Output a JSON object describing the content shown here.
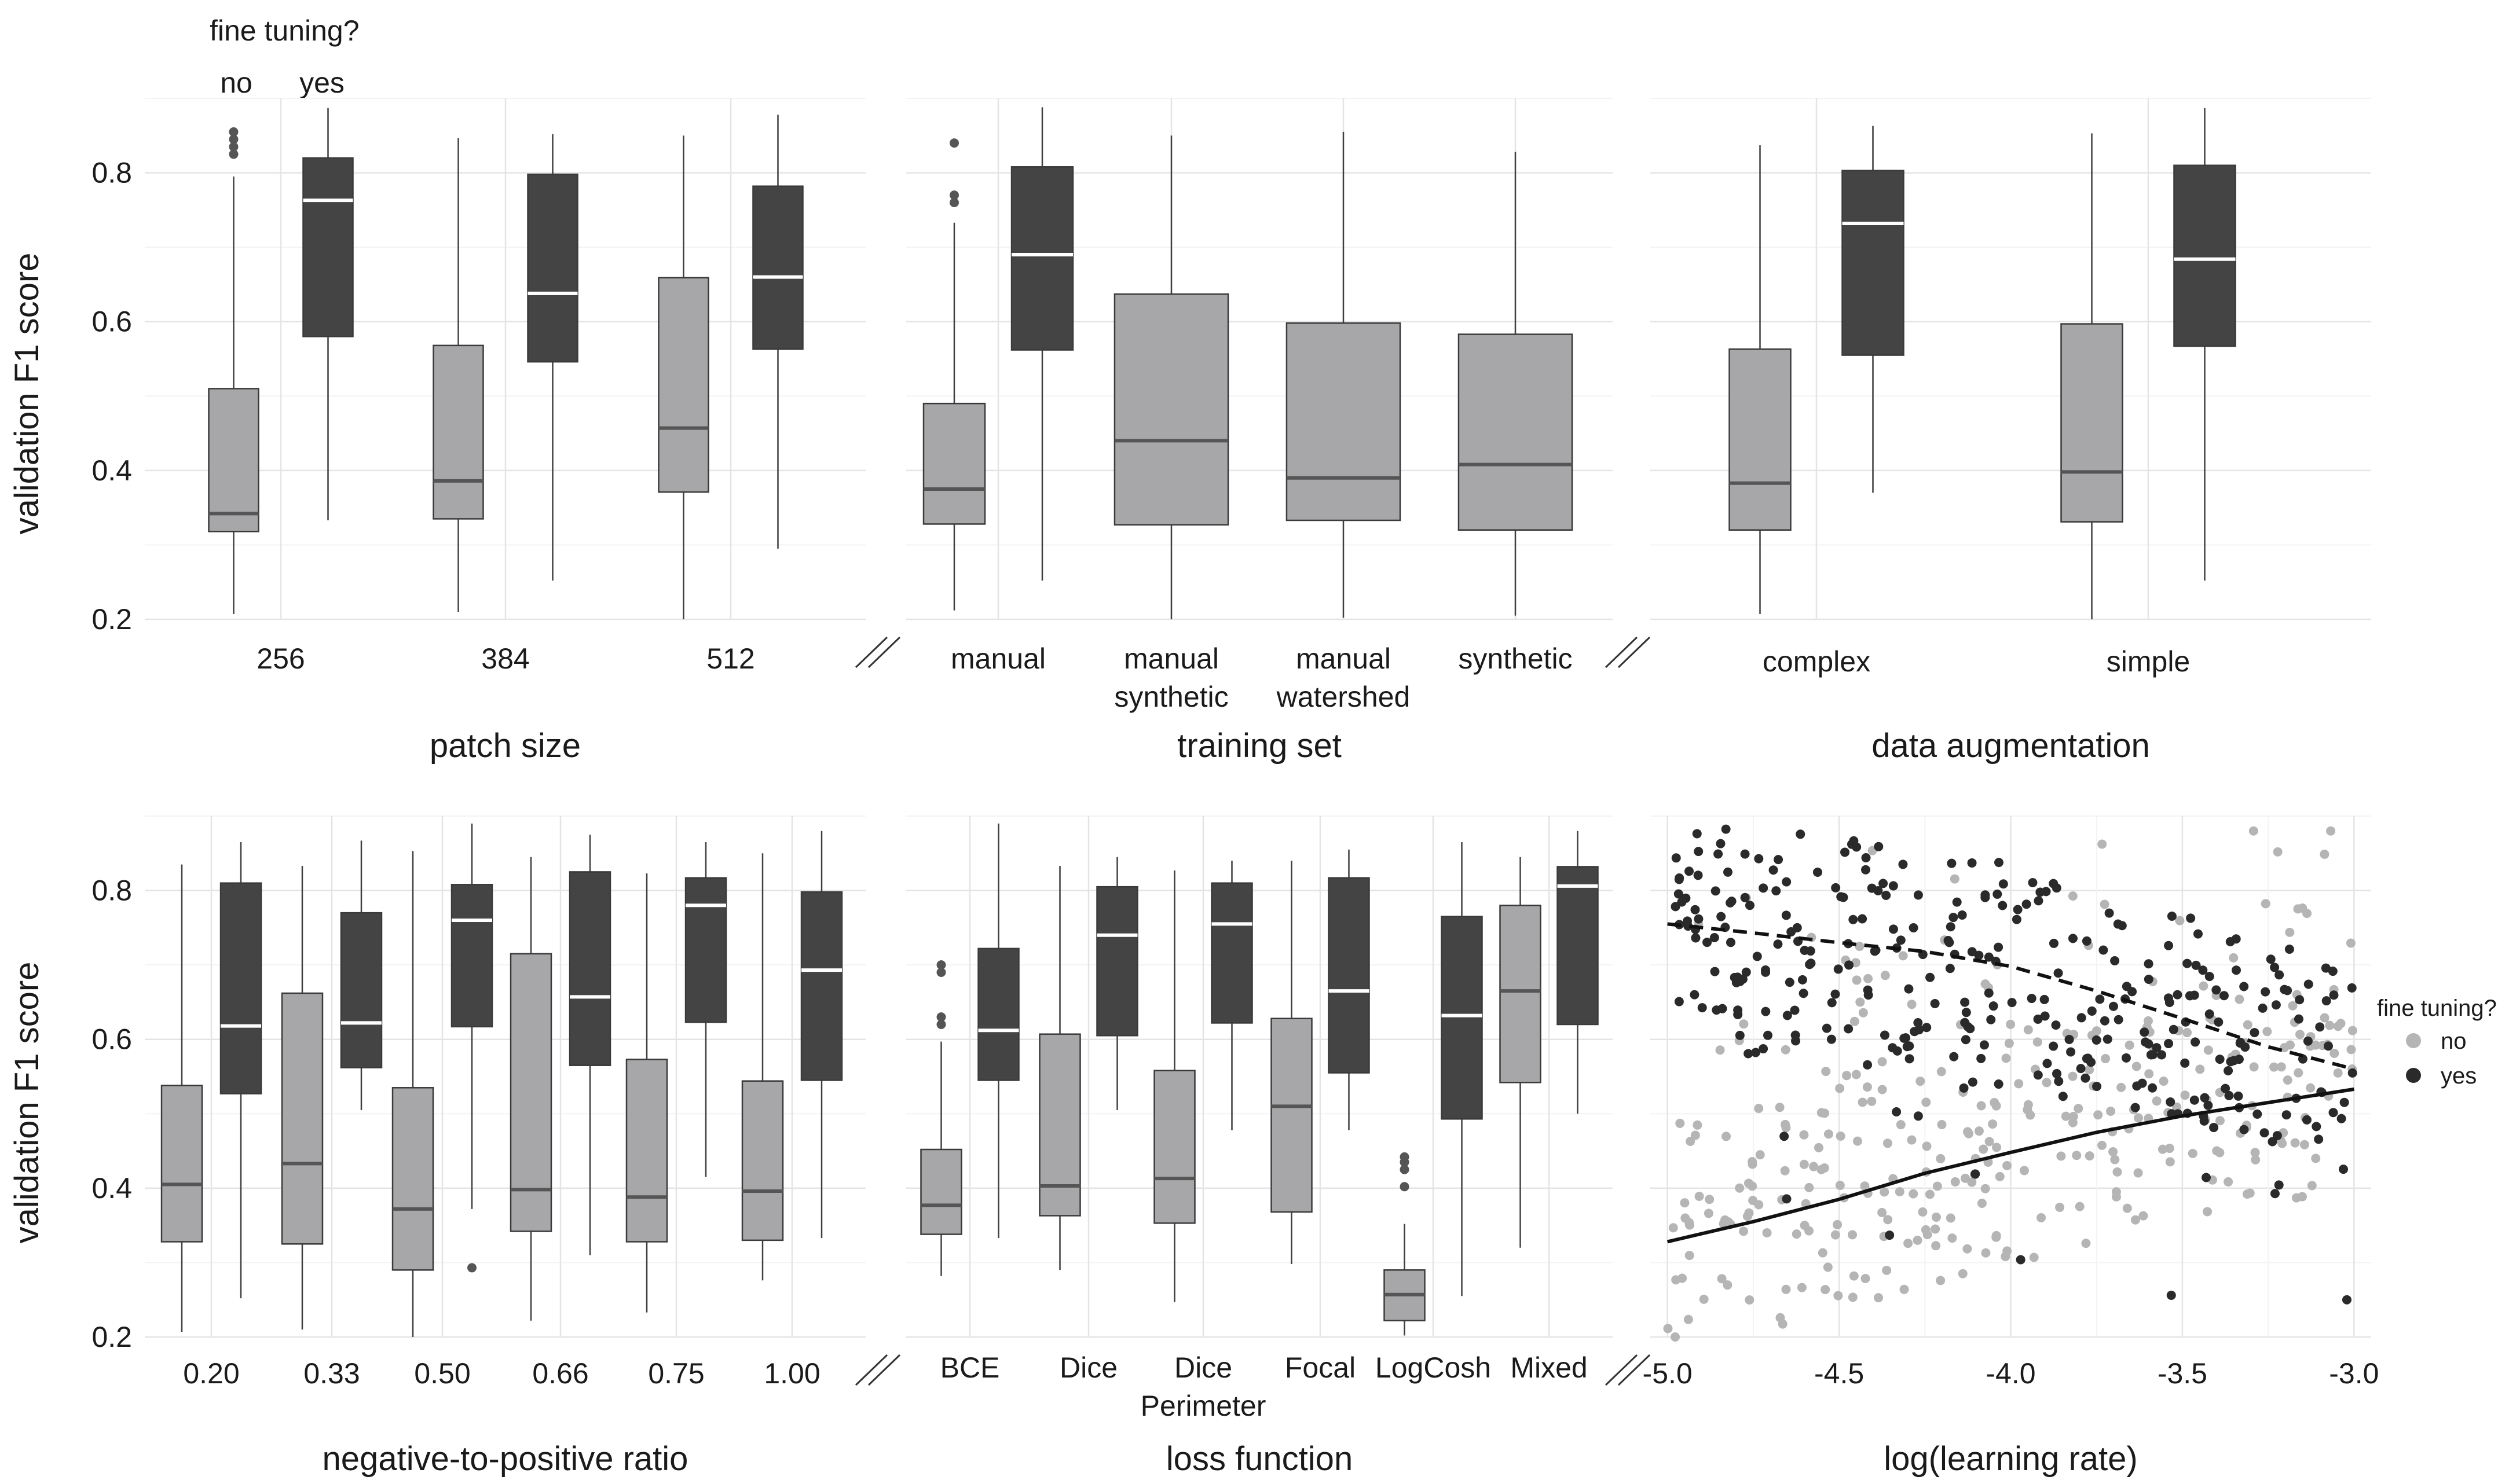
{
  "chart_data": {
    "type": "boxplot",
    "y_label": "validation F1 score",
    "y_ticks": [
      "0.2",
      "0.4",
      "0.6",
      "0.8"
    ],
    "ylim": [
      0.2,
      0.9
    ],
    "fine_tuning_title": "fine tuning?",
    "fine_tuning_levels": [
      "no",
      "yes"
    ],
    "colors": {
      "no": "#a7a7aa",
      "yes": "#444444",
      "median_no": "#555555",
      "median_yes": "#ffffff",
      "point_no": "#b5b5b5",
      "point_yes": "#2a2a2a"
    },
    "panels": [
      {
        "id": "patch-size",
        "xlabel": "patch size",
        "categories": [
          [
            "256"
          ],
          [
            "384"
          ],
          [
            "512"
          ]
        ],
        "boxes": [
          {
            "group": "no",
            "cat": 0,
            "q1": 0.318,
            "median": 0.342,
            "q3": 0.51,
            "lo": 0.207,
            "hi": 0.795,
            "outliers": [
              0.825,
              0.835,
              0.845,
              0.855
            ]
          },
          {
            "group": "yes",
            "cat": 0,
            "q1": 0.58,
            "median": 0.763,
            "q3": 0.82,
            "lo": 0.333,
            "hi": 0.887,
            "outliers": []
          },
          {
            "group": "no",
            "cat": 1,
            "q1": 0.335,
            "median": 0.386,
            "q3": 0.568,
            "lo": 0.21,
            "hi": 0.847,
            "outliers": []
          },
          {
            "group": "yes",
            "cat": 1,
            "q1": 0.546,
            "median": 0.638,
            "q3": 0.798,
            "lo": 0.252,
            "hi": 0.852,
            "outliers": []
          },
          {
            "group": "no",
            "cat": 2,
            "q1": 0.371,
            "median": 0.457,
            "q3": 0.659,
            "lo": 0.2,
            "hi": 0.85,
            "outliers": []
          },
          {
            "group": "yes",
            "cat": 2,
            "q1": 0.563,
            "median": 0.66,
            "q3": 0.782,
            "lo": 0.295,
            "hi": 0.878,
            "outliers": []
          }
        ]
      },
      {
        "id": "training-set",
        "xlabel": "training set",
        "categories": [
          [
            "manual"
          ],
          [
            "manual",
            "synthetic"
          ],
          [
            "manual",
            "watershed"
          ],
          [
            "synthetic"
          ]
        ],
        "boxes": [
          {
            "group": "no",
            "cat": 0,
            "q1": 0.328,
            "median": 0.375,
            "q3": 0.49,
            "lo": 0.212,
            "hi": 0.733,
            "outliers": [
              0.76,
              0.77,
              0.84
            ]
          },
          {
            "group": "yes",
            "cat": 0,
            "q1": 0.562,
            "median": 0.69,
            "q3": 0.808,
            "lo": 0.252,
            "hi": 0.888,
            "outliers": []
          },
          {
            "group": "no",
            "cat": 1,
            "q1": 0.327,
            "median": 0.44,
            "q3": 0.637,
            "lo": 0.2,
            "hi": 0.85,
            "outliers": []
          },
          {
            "group": "no",
            "cat": 2,
            "q1": 0.333,
            "median": 0.39,
            "q3": 0.598,
            "lo": 0.202,
            "hi": 0.855,
            "outliers": []
          },
          {
            "group": "no",
            "cat": 3,
            "q1": 0.32,
            "median": 0.408,
            "q3": 0.583,
            "lo": 0.205,
            "hi": 0.828,
            "outliers": []
          }
        ]
      },
      {
        "id": "data-augmentation",
        "xlabel": "data augmentation",
        "categories": [
          [
            "complex"
          ],
          [
            "simple"
          ]
        ],
        "boxes": [
          {
            "group": "no",
            "cat": 0,
            "q1": 0.32,
            "median": 0.383,
            "q3": 0.563,
            "lo": 0.207,
            "hi": 0.837,
            "outliers": []
          },
          {
            "group": "yes",
            "cat": 0,
            "q1": 0.555,
            "median": 0.732,
            "q3": 0.803,
            "lo": 0.37,
            "hi": 0.863,
            "outliers": []
          },
          {
            "group": "no",
            "cat": 1,
            "q1": 0.331,
            "median": 0.398,
            "q3": 0.597,
            "lo": 0.2,
            "hi": 0.853,
            "outliers": []
          },
          {
            "group": "yes",
            "cat": 1,
            "q1": 0.567,
            "median": 0.684,
            "q3": 0.81,
            "lo": 0.252,
            "hi": 0.887,
            "outliers": []
          }
        ]
      },
      {
        "id": "neg-pos-ratio",
        "xlabel": "negative-to-positive ratio",
        "categories": [
          [
            "0.20"
          ],
          [
            "0.33"
          ],
          [
            "0.50"
          ],
          [
            "0.66"
          ],
          [
            "0.75"
          ],
          [
            "1.00"
          ]
        ],
        "boxes": [
          {
            "group": "no",
            "cat": 0,
            "q1": 0.328,
            "median": 0.405,
            "q3": 0.538,
            "lo": 0.207,
            "hi": 0.835,
            "outliers": []
          },
          {
            "group": "yes",
            "cat": 0,
            "q1": 0.527,
            "median": 0.618,
            "q3": 0.81,
            "lo": 0.252,
            "hi": 0.865,
            "outliers": []
          },
          {
            "group": "no",
            "cat": 1,
            "q1": 0.325,
            "median": 0.433,
            "q3": 0.662,
            "lo": 0.21,
            "hi": 0.833,
            "outliers": []
          },
          {
            "group": "yes",
            "cat": 1,
            "q1": 0.562,
            "median": 0.622,
            "q3": 0.77,
            "lo": 0.505,
            "hi": 0.867,
            "outliers": []
          },
          {
            "group": "no",
            "cat": 2,
            "q1": 0.29,
            "median": 0.372,
            "q3": 0.535,
            "lo": 0.2,
            "hi": 0.853,
            "outliers": []
          },
          {
            "group": "yes",
            "cat": 2,
            "q1": 0.617,
            "median": 0.76,
            "q3": 0.808,
            "lo": 0.372,
            "hi": 0.89,
            "outliers": [
              0.293
            ]
          },
          {
            "group": "no",
            "cat": 3,
            "q1": 0.342,
            "median": 0.398,
            "q3": 0.715,
            "lo": 0.222,
            "hi": 0.845,
            "outliers": []
          },
          {
            "group": "yes",
            "cat": 3,
            "q1": 0.565,
            "median": 0.657,
            "q3": 0.825,
            "lo": 0.31,
            "hi": 0.875,
            "outliers": []
          },
          {
            "group": "no",
            "cat": 4,
            "q1": 0.328,
            "median": 0.388,
            "q3": 0.573,
            "lo": 0.233,
            "hi": 0.823,
            "outliers": []
          },
          {
            "group": "yes",
            "cat": 4,
            "q1": 0.623,
            "median": 0.78,
            "q3": 0.817,
            "lo": 0.415,
            "hi": 0.865,
            "outliers": []
          },
          {
            "group": "no",
            "cat": 5,
            "q1": 0.33,
            "median": 0.396,
            "q3": 0.544,
            "lo": 0.276,
            "hi": 0.85,
            "outliers": []
          },
          {
            "group": "yes",
            "cat": 5,
            "q1": 0.545,
            "median": 0.693,
            "q3": 0.798,
            "lo": 0.333,
            "hi": 0.88,
            "outliers": []
          }
        ]
      },
      {
        "id": "loss-function",
        "xlabel": "loss function",
        "categories": [
          [
            "BCE"
          ],
          [
            "Dice"
          ],
          [
            "Dice",
            "Perimeter"
          ],
          [
            "Focal"
          ],
          [
            "LogCosh"
          ],
          [
            "Mixed"
          ]
        ],
        "boxes": [
          {
            "group": "no",
            "cat": 0,
            "q1": 0.338,
            "median": 0.377,
            "q3": 0.452,
            "lo": 0.282,
            "hi": 0.597,
            "outliers": [
              0.62,
              0.63,
              0.69,
              0.7
            ]
          },
          {
            "group": "yes",
            "cat": 0,
            "q1": 0.545,
            "median": 0.612,
            "q3": 0.722,
            "lo": 0.333,
            "hi": 0.89,
            "outliers": []
          },
          {
            "group": "no",
            "cat": 1,
            "q1": 0.363,
            "median": 0.403,
            "q3": 0.607,
            "lo": 0.29,
            "hi": 0.833,
            "outliers": []
          },
          {
            "group": "yes",
            "cat": 1,
            "q1": 0.605,
            "median": 0.74,
            "q3": 0.805,
            "lo": 0.505,
            "hi": 0.845,
            "outliers": []
          },
          {
            "group": "no",
            "cat": 2,
            "q1": 0.353,
            "median": 0.413,
            "q3": 0.558,
            "lo": 0.247,
            "hi": 0.827,
            "outliers": []
          },
          {
            "group": "yes",
            "cat": 2,
            "q1": 0.622,
            "median": 0.755,
            "q3": 0.81,
            "lo": 0.478,
            "hi": 0.84,
            "outliers": []
          },
          {
            "group": "no",
            "cat": 3,
            "q1": 0.368,
            "median": 0.51,
            "q3": 0.628,
            "lo": 0.298,
            "hi": 0.84,
            "outliers": []
          },
          {
            "group": "yes",
            "cat": 3,
            "q1": 0.555,
            "median": 0.665,
            "q3": 0.817,
            "lo": 0.478,
            "hi": 0.855,
            "outliers": []
          },
          {
            "group": "no",
            "cat": 4,
            "q1": 0.222,
            "median": 0.257,
            "q3": 0.29,
            "lo": 0.202,
            "hi": 0.352,
            "outliers": [
              0.402,
              0.425,
              0.435,
              0.442
            ]
          },
          {
            "group": "yes",
            "cat": 4,
            "q1": 0.493,
            "median": 0.632,
            "q3": 0.765,
            "lo": 0.255,
            "hi": 0.865,
            "outliers": []
          },
          {
            "group": "no",
            "cat": 5,
            "q1": 0.542,
            "median": 0.665,
            "q3": 0.78,
            "lo": 0.32,
            "hi": 0.845,
            "outliers": []
          },
          {
            "group": "yes",
            "cat": 5,
            "q1": 0.62,
            "median": 0.806,
            "q3": 0.832,
            "lo": 0.5,
            "hi": 0.88,
            "outliers": []
          }
        ]
      }
    ],
    "scatter": {
      "id": "learning-rate",
      "type": "scatter",
      "xlabel": "log(learning rate)",
      "x_ticks": [
        "-5.0",
        "-4.5",
        "-4.0",
        "-3.5",
        "-3.0"
      ],
      "xlim": [
        -5.05,
        -2.95
      ],
      "n_points_per_group": 330,
      "trend_no": {
        "x": [
          -5.0,
          -4.75,
          -4.5,
          -4.25,
          -4.0,
          -3.75,
          -3.5,
          -3.25,
          -3.0
        ],
        "y": [
          0.328,
          0.355,
          0.385,
          0.42,
          0.448,
          0.475,
          0.497,
          0.515,
          0.533
        ]
      },
      "trend_yes": {
        "x": [
          -5.0,
          -4.75,
          -4.5,
          -4.25,
          -4.0,
          -3.75,
          -3.5,
          -3.25,
          -3.0
        ],
        "y": [
          0.755,
          0.743,
          0.73,
          0.718,
          0.698,
          0.665,
          0.628,
          0.59,
          0.56
        ]
      }
    }
  }
}
